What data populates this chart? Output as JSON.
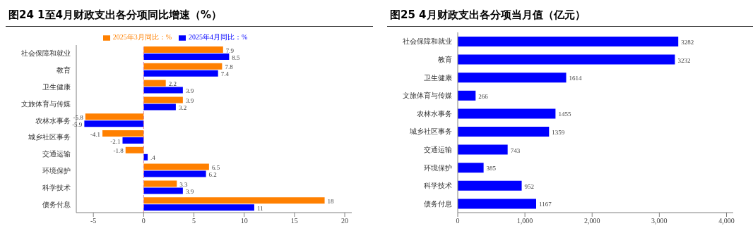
{
  "chart_data": [
    {
      "type": "bar",
      "orientation": "horizontal",
      "title": "图24 1至4月财政支出各分项同比增速（%）",
      "categories": [
        "社会保障和就业",
        "教育",
        "卫生健康",
        "文旅体育与传媒",
        "农林水事务",
        "城乡社区事务",
        "交通运输",
        "环境保护",
        "科学技术",
        "债务付息"
      ],
      "series": [
        {
          "name": "2025年3月同比：%",
          "color": "#ff8000",
          "values": [
            7.9,
            7.8,
            2.2,
            3.9,
            -5.8,
            -4.1,
            -1.8,
            6.5,
            3.3,
            18
          ],
          "value_labels": [
            "7.9",
            "7.8",
            "2.2",
            "3.9",
            "-5.8",
            "-4.1",
            "-1.8",
            "6.5",
            "3.3",
            "18"
          ]
        },
        {
          "name": "2025年4月同比：%",
          "color": "#0000ff",
          "values": [
            8.5,
            7.4,
            3.9,
            3.2,
            -5.9,
            -2.1,
            0.4,
            6.2,
            3.9,
            11
          ],
          "value_labels": [
            "8.5",
            "7.4",
            "3.9",
            "3.2",
            "-5.9",
            "-2.1",
            ".4",
            "6.2",
            "3.9",
            "11"
          ]
        }
      ],
      "xlim": [
        -6.7,
        20.7
      ],
      "xticks": [
        -5,
        0,
        5,
        10,
        15,
        20
      ],
      "ref_lines": [
        {
          "axis": "x",
          "value": 0,
          "color": "#e0809a",
          "line_style": "dashed"
        }
      ],
      "legend": "top"
    },
    {
      "type": "bar",
      "orientation": "horizontal",
      "title": "图25 4月财政支出各分项当月值（亿元）",
      "categories": [
        "社会保障和就业",
        "教育",
        "卫生健康",
        "文旅体育与传媒",
        "农林水事务",
        "城乡社区事务",
        "交通运输",
        "环境保护",
        "科学技术",
        "债务付息"
      ],
      "values": [
        3282,
        3232,
        1614,
        266,
        1455,
        1359,
        743,
        385,
        952,
        1167
      ],
      "color": "#0000ff",
      "xlim": [
        0,
        4100
      ],
      "xticks": [
        0,
        {
          "value": 1000,
          "label": "1,000"
        },
        {
          "value": 2000,
          "label": "2,000"
        },
        {
          "value": 3000,
          "label": "3,000"
        },
        {
          "value": 4000,
          "label": "4,000"
        }
      ],
      "data_labels": true
    }
  ]
}
